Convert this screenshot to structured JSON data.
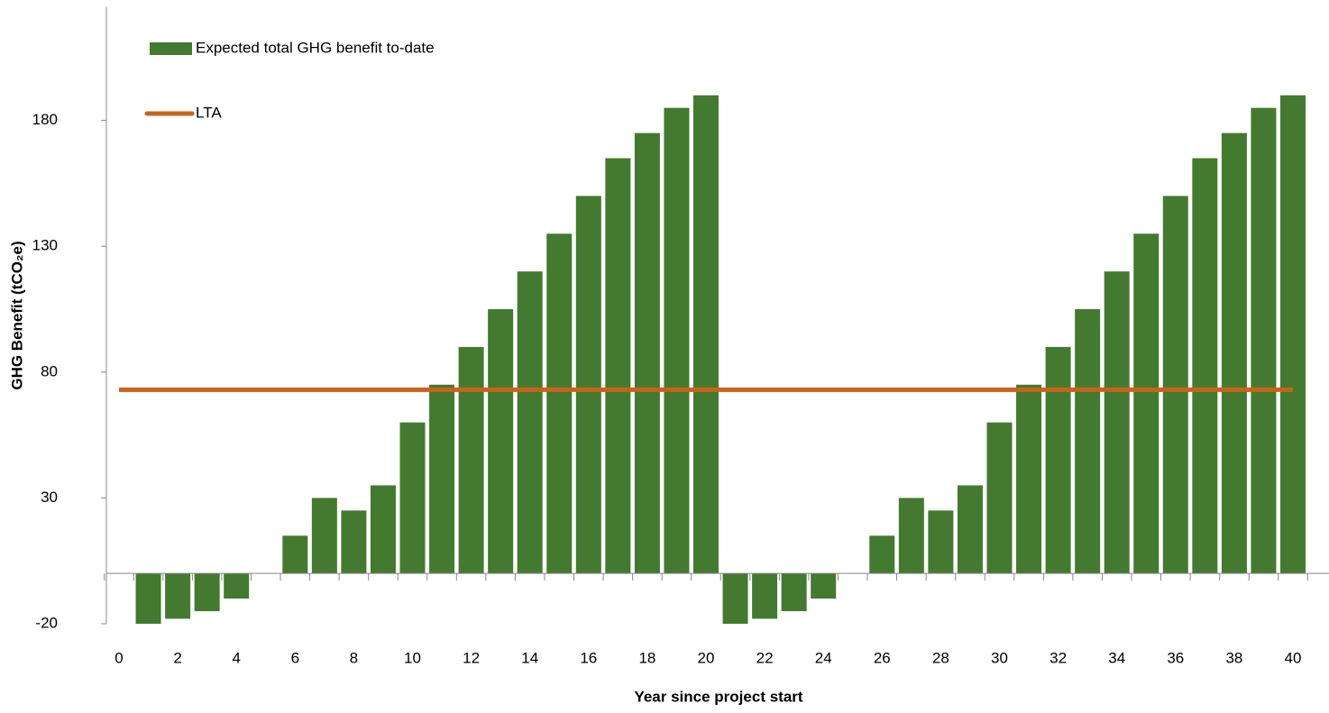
{
  "chart_data": {
    "type": "bar",
    "x_label": "Year since project start",
    "y_label": "GHG Benefit (tCO₂e)",
    "categories": [
      0,
      null,
      2,
      null,
      4,
      null,
      6,
      null,
      8,
      null,
      10,
      null,
      12,
      null,
      14,
      null,
      16,
      null,
      18,
      null,
      20,
      null,
      22,
      null,
      24,
      null,
      26,
      null,
      28,
      null,
      30,
      null,
      32,
      null,
      34,
      null,
      36,
      null,
      38,
      null,
      40
    ],
    "series": [
      {
        "name": "Expected total GHG benefit to-date",
        "type": "bar",
        "color": "#437a2f",
        "values": [
          0,
          -20,
          -18,
          -15,
          -10,
          0,
          15,
          30,
          25,
          35,
          60,
          75,
          90,
          105,
          120,
          135,
          150,
          165,
          175,
          185,
          190,
          -20,
          -18,
          -15,
          -10,
          0,
          15,
          30,
          25,
          35,
          60,
          75,
          90,
          105,
          120,
          135,
          150,
          165,
          175,
          185,
          190
        ]
      },
      {
        "name": "LTA",
        "type": "line",
        "color": "#c4651b",
        "values": [
          73,
          73,
          73,
          73,
          73,
          73,
          73,
          73,
          73,
          73,
          73,
          73,
          73,
          73,
          73,
          73,
          73,
          73,
          73,
          73,
          73,
          73,
          73,
          73,
          73,
          73,
          73,
          73,
          73,
          73,
          73,
          73,
          73,
          73,
          73,
          73,
          73,
          73,
          73,
          73,
          73
        ]
      }
    ],
    "ylim": [
      -20,
      225
    ],
    "yticks": [
      -20,
      30,
      80,
      130,
      180
    ],
    "grid": false
  }
}
